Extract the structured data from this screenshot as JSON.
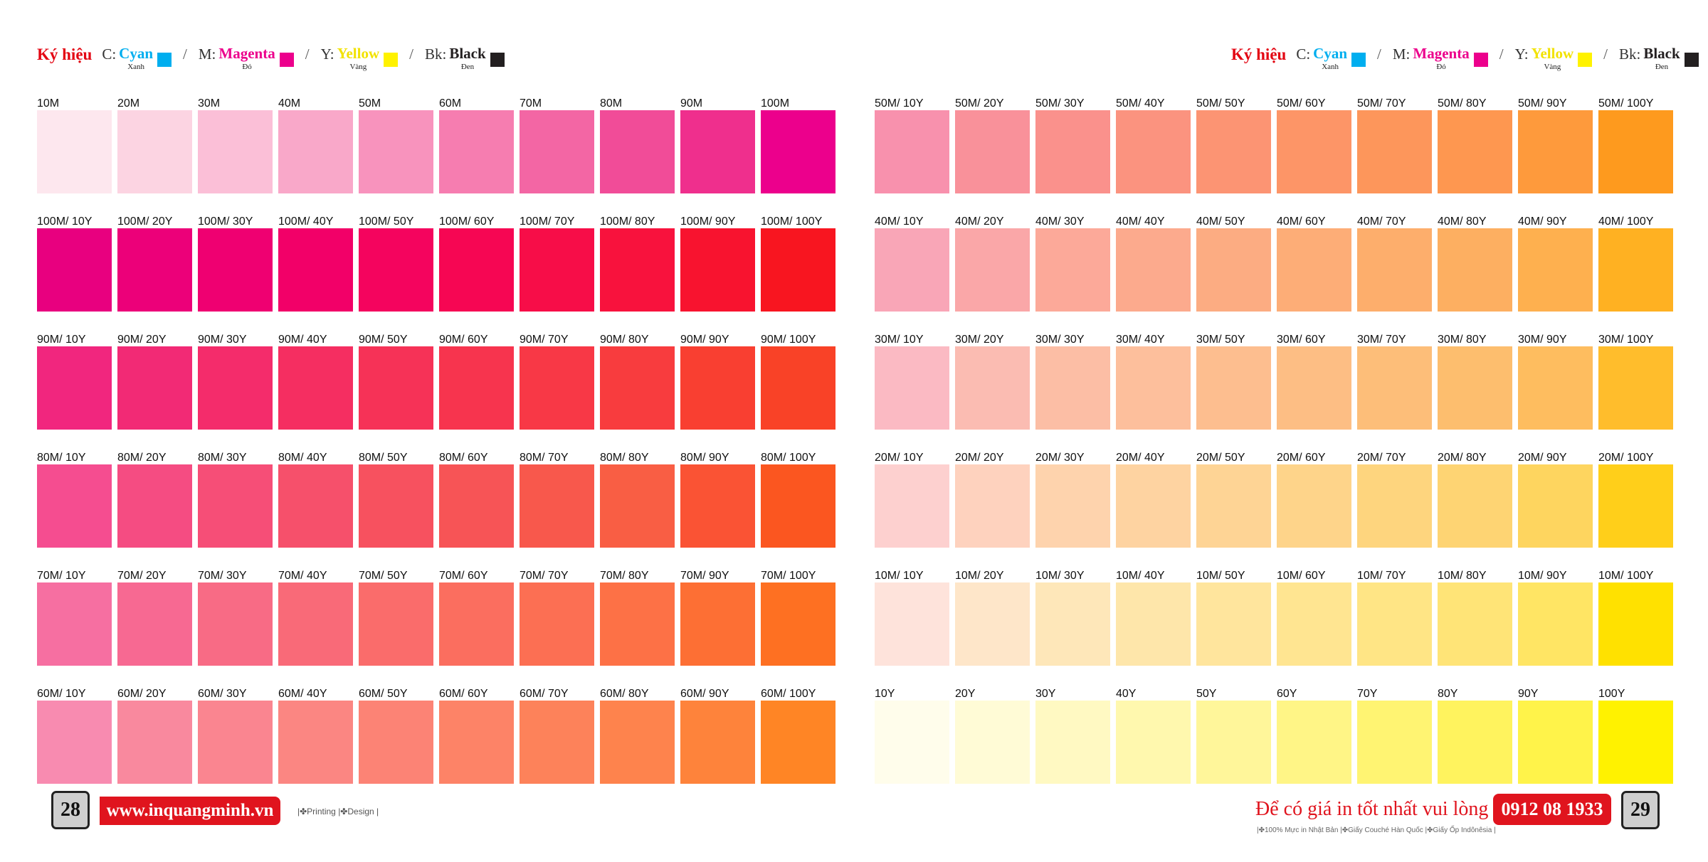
{
  "legend": {
    "title": "Ký hiệu",
    "items": [
      {
        "key": "C:",
        "name": "Cyan",
        "sub": "Xanh",
        "color": "#00aeef",
        "text_color": "#00aeef"
      },
      {
        "key": "M:",
        "name": "Magenta",
        "sub": "Đỏ",
        "color": "#ec008c",
        "text_color": "#ec008c"
      },
      {
        "key": "Y:",
        "name": "Yellow",
        "sub": "Vàng",
        "color": "#fff200",
        "text_color": "#f2e200"
      },
      {
        "key": "Bk:",
        "name": "Black",
        "sub": "Đen",
        "color": "#231f20",
        "text_color": "#231f20"
      }
    ],
    "separator": "/"
  },
  "left_page": {
    "rows": [
      {
        "labels": [
          "10M",
          "20M",
          "30M",
          "40M",
          "50M",
          "60M",
          "70M",
          "80M",
          "90M",
          "100M"
        ],
        "colors": [
          "#fde7ee",
          "#fcd4e2",
          "#fbbfd7",
          "#f9a8c9",
          "#f893bd",
          "#f67db0",
          "#f366a4",
          "#f14c98",
          "#ef2f8d",
          "#ec008c"
        ]
      },
      {
        "labels": [
          "100M/ 10Y",
          "100M/ 20Y",
          "100M/ 30Y",
          "100M/ 40Y",
          "100M/ 50Y",
          "100M/ 60Y",
          "100M/ 70Y",
          "100M/ 80Y",
          "100M/ 90Y",
          "100M/ 100Y"
        ],
        "colors": [
          "#e8007f",
          "#ec0079",
          "#ef0071",
          "#f20068",
          "#f4045e",
          "#f60653",
          "#f70d48",
          "#f8123d",
          "#f8132f",
          "#f81520"
        ]
      },
      {
        "labels": [
          "90M/ 10Y",
          "90M/ 20Y",
          "90M/ 30Y",
          "90M/ 40Y",
          "90M/ 50Y",
          "90M/ 60Y",
          "90M/ 70Y",
          "90M/ 80Y",
          "90M/ 90Y",
          "90M/ 100Y"
        ],
        "colors": [
          "#f1267e",
          "#f22a75",
          "#f42c6b",
          "#f52e61",
          "#f63257",
          "#f7344e",
          "#f83846",
          "#f83c3e",
          "#f93f31",
          "#f94227"
        ]
      },
      {
        "labels": [
          "80M/ 10Y",
          "80M/ 20Y",
          "80M/ 30Y",
          "80M/ 40Y",
          "80M/ 50Y",
          "80M/ 60Y",
          "80M/ 70Y",
          "80M/ 80Y",
          "80M/ 90Y",
          "80M/ 100Y"
        ],
        "colors": [
          "#f54d90",
          "#f54c82",
          "#f64e77",
          "#f6506b",
          "#f7515f",
          "#f75456",
          "#f8584c",
          "#f95e44",
          "#fa5334",
          "#fb5620"
        ]
      },
      {
        "labels": [
          "70M/ 10Y",
          "70M/ 20Y",
          "70M/ 30Y",
          "70M/ 40Y",
          "70M/ 50Y",
          "70M/ 60Y",
          "70M/ 70Y",
          "70M/ 80Y",
          "70M/ 90Y",
          "70M/ 100Y"
        ],
        "colors": [
          "#f66fa1",
          "#f76992",
          "#f86b85",
          "#f96a78",
          "#fa6c6b",
          "#fb6e5f",
          "#fc6f53",
          "#fd7146",
          "#fd6f34",
          "#fe7022"
        ]
      },
      {
        "labels": [
          "60M/ 10Y",
          "60M/ 20Y",
          "60M/ 30Y",
          "60M/ 40Y",
          "60M/ 50Y",
          "60M/ 60Y",
          "60M/ 70Y",
          "60M/ 80Y",
          "60M/ 90Y",
          "60M/ 100Y"
        ],
        "colors": [
          "#f88bb0",
          "#f9899e",
          "#fa8590",
          "#fb8682",
          "#fc8375",
          "#fd8367",
          "#fd825a",
          "#fe834d",
          "#fe833b",
          "#ff8525"
        ]
      }
    ]
  },
  "right_page": {
    "rows": [
      {
        "labels": [
          "50M/ 10Y",
          "50M/ 20Y",
          "50M/ 30Y",
          "50M/ 40Y",
          "50M/ 50Y",
          "50M/ 60Y",
          "50M/ 70Y",
          "50M/ 80Y",
          "50M/ 90Y",
          "50M/ 100Y"
        ],
        "colors": [
          "#f891ad",
          "#f9919a",
          "#fa918c",
          "#fb937f",
          "#fc9473",
          "#fd9567",
          "#fd965b",
          "#fe9750",
          "#fe9a3c",
          "#fe9a1e"
        ]
      },
      {
        "labels": [
          "40M/ 10Y",
          "40M/ 20Y",
          "40M/ 30Y",
          "40M/ 40Y",
          "40M/ 50Y",
          "40M/ 60Y",
          "40M/ 70Y",
          "40M/ 80Y",
          "40M/ 90Y",
          "40M/ 100Y"
        ],
        "colors": [
          "#f9a6b7",
          "#faa7a8",
          "#fca999",
          "#fcaa8d",
          "#fcac82",
          "#fdad77",
          "#fdae6c",
          "#fdaf61",
          "#feb04f",
          "#ffb122"
        ]
      },
      {
        "labels": [
          "30M/ 10Y",
          "30M/ 20Y",
          "30M/ 30Y",
          "30M/ 40Y",
          "30M/ 50Y",
          "30M/ 60Y",
          "30M/ 70Y",
          "30M/ 80Y",
          "30M/ 90Y",
          "30M/ 100Y"
        ],
        "colors": [
          "#fbbac3",
          "#fbbcb2",
          "#fcbea5",
          "#fdbf9c",
          "#fdbe8f",
          "#fdbe84",
          "#fdbe79",
          "#fdbe6e",
          "#febd5f",
          "#ffbd2c"
        ]
      },
      {
        "labels": [
          "20M/ 10Y",
          "20M/ 20Y",
          "20M/ 30Y",
          "20M/ 40Y",
          "20M/ 50Y",
          "20M/ 60Y",
          "20M/ 70Y",
          "20M/ 80Y",
          "20M/ 90Y",
          "20M/ 100Y"
        ],
        "colors": [
          "#fdd0cf",
          "#fed2be",
          "#fed3ad",
          "#fed3a1",
          "#fed495",
          "#fed48a",
          "#fed57e",
          "#fed473",
          "#fed55f",
          "#ffcf1a"
        ]
      },
      {
        "labels": [
          "10M/ 10Y",
          "10M/ 20Y",
          "10M/ 30Y",
          "10M/ 40Y",
          "10M/ 50Y",
          "10M/ 60Y",
          "10M/ 70Y",
          "10M/ 80Y",
          "10M/ 90Y",
          "10M/ 100Y"
        ],
        "colors": [
          "#fee3db",
          "#fee6c9",
          "#fee7b9",
          "#fee6aa",
          "#ffe59d",
          "#ffe591",
          "#ffe585",
          "#ffe477",
          "#ffe564",
          "#ffe100"
        ]
      },
      {
        "labels": [
          "10Y",
          "20Y",
          "30Y",
          "40Y",
          "50Y",
          "60Y",
          "70Y",
          "80Y",
          "90Y",
          "100Y"
        ],
        "colors": [
          "#fffdeb",
          "#fffbd6",
          "#fff9c2",
          "#fff8ae",
          "#fff69a",
          "#fff586",
          "#fff472",
          "#fff35e",
          "#fff34a",
          "#fff200"
        ]
      }
    ]
  },
  "footer": {
    "left_page_number": "28",
    "right_page_number": "29",
    "website": "www.inquangminh.vn",
    "services": "|✤Printing |✤Design |",
    "call_text": "Để có giá in tốt nhất vui lòng gọi:",
    "phone": "0912 08 1933",
    "paper_info": "|✤100% Mực in Nhật Bản |✤Giấy Couché Hàn Quốc |✤Giấy Ốp Indônêsia |"
  }
}
